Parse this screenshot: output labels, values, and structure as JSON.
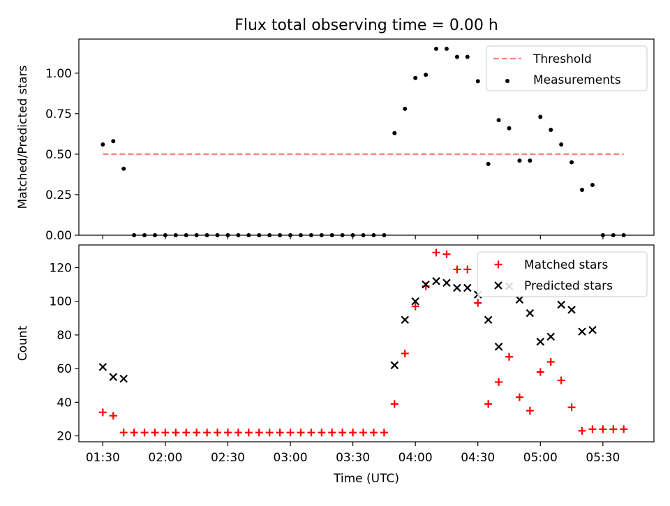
{
  "chart_data": {
    "title": "Flux total observing time = 0.00 h",
    "xlabel": "Time (UTC)",
    "x_unit": "minutes after 00:00 UTC",
    "x_ticks": [
      {
        "value": 90,
        "label": "01:30"
      },
      {
        "value": 120,
        "label": "02:00"
      },
      {
        "value": 150,
        "label": "02:30"
      },
      {
        "value": 180,
        "label": "03:00"
      },
      {
        "value": 210,
        "label": "03:30"
      },
      {
        "value": 240,
        "label": "04:00"
      },
      {
        "value": 270,
        "label": "04:30"
      },
      {
        "value": 300,
        "label": "05:00"
      },
      {
        "value": 330,
        "label": "05:30"
      }
    ],
    "xlim": [
      78.5,
      354.5
    ],
    "panels": [
      {
        "type": "scatter",
        "ylabel": "Matched/Predicted stars",
        "ylim": [
          0,
          1.21
        ],
        "y_ticks": [
          {
            "value": 0,
            "label": "0.00"
          },
          {
            "value": 0.25,
            "label": "0.25"
          },
          {
            "value": 0.5,
            "label": "0.50"
          },
          {
            "value": 0.75,
            "label": "0.75"
          },
          {
            "value": 1.0,
            "label": "1.00"
          }
        ],
        "legend_position": "top-right",
        "series": [
          {
            "name": "Threshold",
            "kind": "line",
            "style": "dashed",
            "color": "#ff8080",
            "x": [
              90,
              340
            ],
            "y": [
              0.5,
              0.5
            ]
          },
          {
            "name": "Measurements",
            "kind": "dot",
            "color": "#000000",
            "x": [
              90,
              95,
              100,
              105,
              110,
              115,
              120,
              125,
              130,
              135,
              140,
              145,
              150,
              155,
              160,
              165,
              170,
              175,
              180,
              185,
              190,
              195,
              200,
              205,
              210,
              215,
              220,
              225,
              230,
              235,
              240,
              245,
              250,
              255,
              260,
              265,
              270,
              275,
              280,
              285,
              290,
              295,
              300,
              305,
              310,
              315,
              320,
              325,
              330,
              335,
              340
            ],
            "y": [
              0.56,
              0.58,
              0.41,
              0,
              0,
              0,
              0,
              0,
              0,
              0,
              0,
              0,
              0,
              0,
              0,
              0,
              0,
              0,
              0,
              0,
              0,
              0,
              0,
              0,
              0,
              0,
              0,
              0,
              0.63,
              0.78,
              0.97,
              0.99,
              1.15,
              1.15,
              1.1,
              1.1,
              0.95,
              0.44,
              0.71,
              0.66,
              0.46,
              0.46,
              0.73,
              0.65,
              0.56,
              0.45,
              0.28,
              0.31,
              0,
              0,
              0
            ]
          }
        ]
      },
      {
        "type": "scatter",
        "ylabel": "Count",
        "ylim": [
          16.5,
          133.5
        ],
        "y_ticks": [
          {
            "value": 20,
            "label": "20"
          },
          {
            "value": 40,
            "label": "40"
          },
          {
            "value": 60,
            "label": "60"
          },
          {
            "value": 80,
            "label": "80"
          },
          {
            "value": 100,
            "label": "100"
          },
          {
            "value": 120,
            "label": "120"
          }
        ],
        "legend_position": "top-right",
        "series": [
          {
            "name": "Matched stars",
            "kind": "plus",
            "color": "#ff0000",
            "x": [
              90,
              95,
              100,
              105,
              110,
              115,
              120,
              125,
              130,
              135,
              140,
              145,
              150,
              155,
              160,
              165,
              170,
              175,
              180,
              185,
              190,
              195,
              200,
              205,
              210,
              215,
              220,
              225,
              230,
              235,
              240,
              245,
              250,
              255,
              260,
              265,
              270,
              275,
              280,
              285,
              290,
              295,
              300,
              305,
              310,
              315,
              320,
              325,
              330,
              335,
              340
            ],
            "y": [
              34,
              32,
              22,
              22,
              22,
              22,
              22,
              22,
              22,
              22,
              22,
              22,
              22,
              22,
              22,
              22,
              22,
              22,
              22,
              22,
              22,
              22,
              22,
              22,
              22,
              22,
              22,
              22,
              39,
              69,
              97,
              109,
              129,
              128,
              119,
              119,
              99,
              39,
              52,
              67,
              43,
              35,
              58,
              64,
              53,
              37,
              23,
              24,
              24,
              24,
              24
            ]
          },
          {
            "name": "Predicted stars",
            "kind": "x",
            "color": "#000000",
            "x": [
              90,
              95,
              100,
              230,
              235,
              240,
              245,
              250,
              255,
              260,
              265,
              270,
              275,
              280,
              285,
              290,
              295,
              300,
              305,
              310,
              315,
              320,
              325
            ],
            "y": [
              61,
              55,
              54,
              62,
              89,
              100,
              110,
              112,
              111,
              108,
              108,
              104,
              89,
              73,
              109,
              101,
              93,
              76,
              79,
              98,
              95,
              82,
              83
            ]
          }
        ]
      }
    ]
  }
}
